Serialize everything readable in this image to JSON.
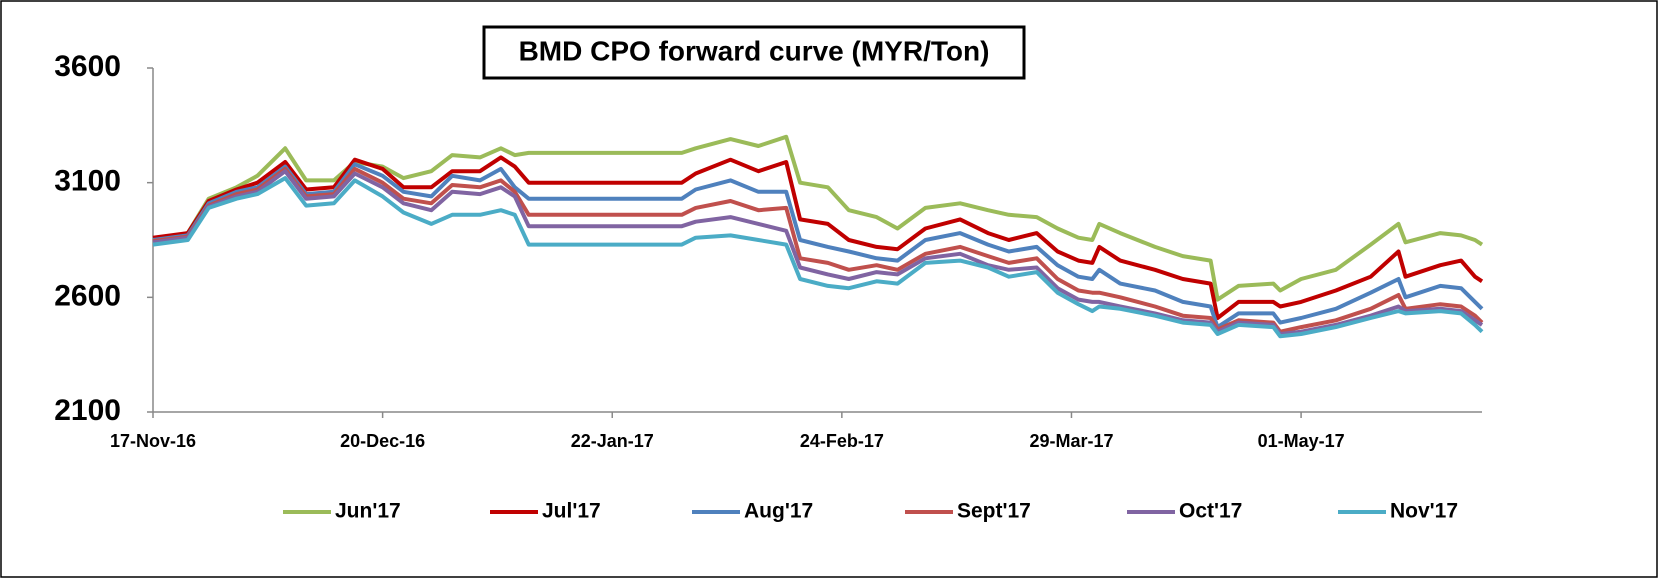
{
  "chart_data": {
    "type": "line",
    "title": "BMD CPO forward curve (MYR/Ton)",
    "x": [
      "2016-11-17",
      "2016-11-22",
      "2016-11-25",
      "2016-11-29",
      "2016-12-02",
      "2016-12-06",
      "2016-12-09",
      "2016-12-13",
      "2016-12-16",
      "2016-12-20",
      "2016-12-23",
      "2016-12-27",
      "2016-12-30",
      "2017-01-03",
      "2017-01-06",
      "2017-01-08",
      "2017-01-10",
      "2017-02-01",
      "2017-02-03",
      "2017-02-08",
      "2017-02-12",
      "2017-02-16",
      "2017-02-18",
      "2017-02-22",
      "2017-02-25",
      "2017-03-01",
      "2017-03-04",
      "2017-03-08",
      "2017-03-13",
      "2017-03-17",
      "2017-03-20",
      "2017-03-24",
      "2017-03-27",
      "2017-03-30",
      "2017-04-01",
      "2017-04-02",
      "2017-04-05",
      "2017-04-10",
      "2017-04-14",
      "2017-04-18",
      "2017-04-19",
      "2017-04-22",
      "2017-04-27",
      "2017-04-28",
      "2017-05-01",
      "2017-05-06",
      "2017-05-11",
      "2017-05-15",
      "2017-05-16",
      "2017-05-21",
      "2017-05-24",
      "2017-05-26",
      "2017-05-27"
    ],
    "series": [
      {
        "name": "Jun'17",
        "color": "#9bbb59",
        "values": [
          2850,
          2880,
          3030,
          3080,
          3130,
          3250,
          3110,
          3110,
          3190,
          3170,
          3120,
          3150,
          3220,
          3210,
          3250,
          3220,
          3230,
          3230,
          3250,
          3290,
          3260,
          3300,
          3100,
          3080,
          2980,
          2950,
          2900,
          2990,
          3010,
          2980,
          2960,
          2950,
          2900,
          2860,
          2850,
          2920,
          2880,
          2820,
          2780,
          2760,
          2590,
          2650,
          2660,
          2630,
          2680,
          2720,
          2830,
          2920,
          2840,
          2880,
          2870,
          2850,
          2830
        ]
      },
      {
        "name": "Jul'17",
        "color": "#c00000",
        "values": [
          2860,
          2880,
          3020,
          3070,
          3100,
          3190,
          3070,
          3080,
          3200,
          3160,
          3080,
          3080,
          3150,
          3150,
          3210,
          3170,
          3100,
          3100,
          3140,
          3200,
          3150,
          3190,
          2940,
          2920,
          2850,
          2820,
          2810,
          2900,
          2940,
          2880,
          2850,
          2880,
          2800,
          2760,
          2750,
          2820,
          2760,
          2720,
          2680,
          2660,
          2510,
          2580,
          2580,
          2560,
          2580,
          2630,
          2690,
          2800,
          2690,
          2740,
          2760,
          2690,
          2670
        ]
      },
      {
        "name": "Aug'17",
        "color": "#4f81bd",
        "values": [
          2850,
          2870,
          3010,
          3060,
          3080,
          3170,
          3050,
          3060,
          3180,
          3130,
          3060,
          3040,
          3130,
          3110,
          3160,
          3080,
          3030,
          3030,
          3070,
          3110,
          3060,
          3060,
          2850,
          2820,
          2800,
          2770,
          2760,
          2850,
          2880,
          2830,
          2800,
          2820,
          2740,
          2690,
          2680,
          2720,
          2660,
          2630,
          2580,
          2560,
          2470,
          2530,
          2530,
          2490,
          2510,
          2550,
          2620,
          2680,
          2600,
          2650,
          2640,
          2580,
          2550
        ]
      },
      {
        "name": "Sept'17",
        "color": "#c0504d",
        "values": [
          2845,
          2865,
          3000,
          3050,
          3070,
          3160,
          3040,
          3050,
          3160,
          3100,
          3030,
          3010,
          3090,
          3080,
          3110,
          3060,
          2960,
          2960,
          2990,
          3020,
          2980,
          2990,
          2770,
          2750,
          2720,
          2740,
          2720,
          2790,
          2820,
          2780,
          2750,
          2770,
          2680,
          2630,
          2620,
          2620,
          2600,
          2560,
          2520,
          2510,
          2460,
          2500,
          2490,
          2450,
          2470,
          2500,
          2550,
          2610,
          2550,
          2570,
          2560,
          2520,
          2490
        ]
      },
      {
        "name": "Oct'17",
        "color": "#8064a2",
        "values": [
          2840,
          2860,
          2995,
          3040,
          3060,
          3150,
          3030,
          3040,
          3140,
          3080,
          3010,
          2980,
          3060,
          3050,
          3080,
          3040,
          2910,
          2910,
          2930,
          2950,
          2920,
          2890,
          2730,
          2700,
          2680,
          2710,
          2700,
          2770,
          2790,
          2740,
          2720,
          2730,
          2640,
          2590,
          2580,
          2580,
          2560,
          2530,
          2500,
          2490,
          2450,
          2490,
          2480,
          2440,
          2450,
          2480,
          2520,
          2560,
          2540,
          2550,
          2540,
          2500,
          2480
        ]
      },
      {
        "name": "Nov'17",
        "color": "#4bacc6",
        "values": [
          2830,
          2850,
          2990,
          3030,
          3050,
          3120,
          3000,
          3010,
          3110,
          3040,
          2970,
          2920,
          2960,
          2960,
          2980,
          2960,
          2830,
          2830,
          2860,
          2870,
          2850,
          2830,
          2680,
          2650,
          2640,
          2670,
          2660,
          2750,
          2760,
          2730,
          2690,
          2710,
          2620,
          2570,
          2540,
          2560,
          2550,
          2520,
          2490,
          2480,
          2440,
          2480,
          2470,
          2430,
          2440,
          2470,
          2510,
          2540,
          2530,
          2540,
          2530,
          2480,
          2450
        ]
      }
    ],
    "xlim": [
      "2016-11-17",
      "2017-05-27"
    ],
    "xticks": [
      {
        "value": "2016-11-17",
        "label": "17-Nov-16"
      },
      {
        "value": "2016-12-20",
        "label": "20-Dec-16"
      },
      {
        "value": "2017-01-22",
        "label": "22-Jan-17"
      },
      {
        "value": "2017-02-24",
        "label": "24-Feb-17"
      },
      {
        "value": "2017-03-29",
        "label": "29-Mar-17"
      },
      {
        "value": "2017-05-01",
        "label": "01-May-17"
      }
    ],
    "ylim": [
      2100,
      3600
    ],
    "yticks": [
      2100,
      2600,
      3100,
      3600
    ],
    "grid": false,
    "legend": "bottom"
  }
}
